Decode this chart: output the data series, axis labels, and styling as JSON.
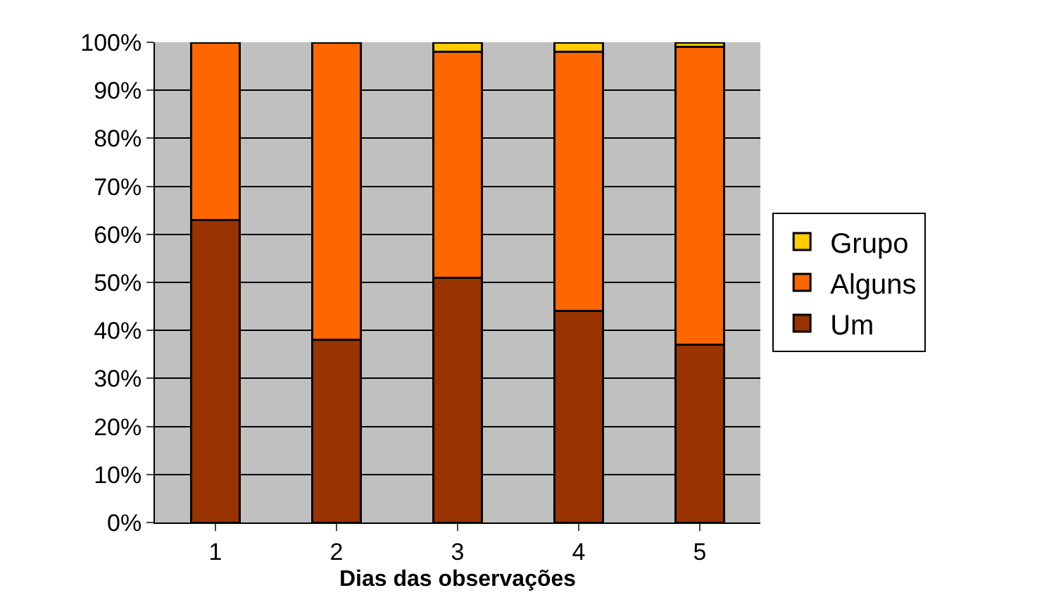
{
  "chart_data": {
    "type": "bar",
    "stacked": true,
    "xlabel": "Dias das observações",
    "categories": [
      "1",
      "2",
      "3",
      "4",
      "5"
    ],
    "series": [
      {
        "name": "Um",
        "color": "#993300",
        "values": [
          63,
          38,
          51,
          44,
          37
        ]
      },
      {
        "name": "Alguns",
        "color": "#ff6600",
        "values": [
          37,
          62,
          47,
          54,
          62
        ]
      },
      {
        "name": "Grupo",
        "color": "#ffcc00",
        "values": [
          null,
          null,
          2,
          2,
          1
        ]
      }
    ],
    "ylim": [
      0,
      100
    ],
    "yticks": [
      {
        "value": 0,
        "label": "0%"
      },
      {
        "value": 10,
        "label": "10%"
      },
      {
        "value": 20,
        "label": "20%"
      },
      {
        "value": 30,
        "label": "30%"
      },
      {
        "value": 40,
        "label": "40%"
      },
      {
        "value": 50,
        "label": "50%"
      },
      {
        "value": 60,
        "label": "60%"
      },
      {
        "value": 70,
        "label": "70%"
      },
      {
        "value": 80,
        "label": "80%"
      },
      {
        "value": 90,
        "label": "90%"
      },
      {
        "value": 100,
        "label": "100%"
      }
    ],
    "grid": "y",
    "legend": "right"
  }
}
